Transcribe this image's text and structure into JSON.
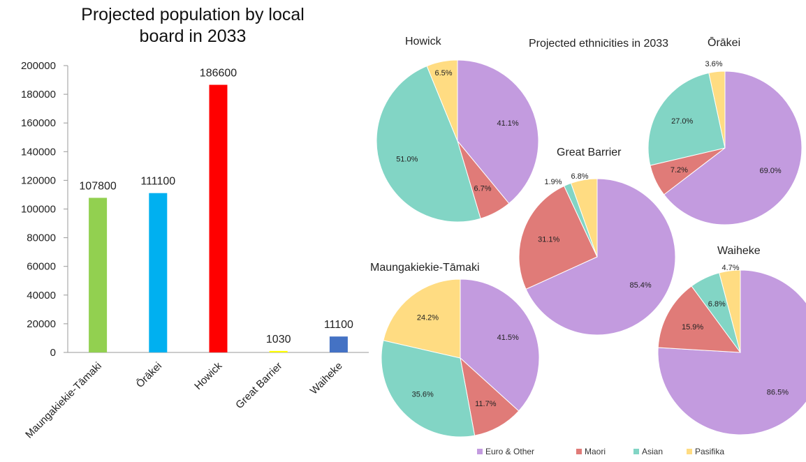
{
  "chart_data": [
    {
      "type": "bar",
      "title": "Projected population by local board in 2033",
      "title_lines": [
        "Projected population by local",
        "board in 2033"
      ],
      "categories": [
        "Maungakiekie-Tāmaki",
        "Ōrākei",
        "Howick",
        "Great Barrier",
        "Waiheke"
      ],
      "values": [
        107800,
        111100,
        186600,
        1030,
        11100
      ],
      "data_labels": [
        "107800",
        "111100",
        "186600",
        "1030",
        "11100"
      ],
      "colors": [
        "#92d050",
        "#00b0f0",
        "#ff0000",
        "#ffff00",
        "#4472c4"
      ],
      "ylim": [
        0,
        200000
      ],
      "yticks": [
        0,
        20000,
        40000,
        60000,
        80000,
        100000,
        120000,
        140000,
        160000,
        180000,
        200000
      ],
      "xlabel": "",
      "ylabel": "",
      "grid": false
    },
    {
      "type": "pie",
      "title": "Projected ethnicities in 2033",
      "legend": {
        "position": "bottom",
        "entries": [
          {
            "name": "Euro & Other",
            "color": "#c39bdf"
          },
          {
            "name": "Maori",
            "color": "#e07b78"
          },
          {
            "name": "Asian",
            "color": "#82d5c5"
          },
          {
            "name": "Pasifika",
            "color": "#ffdc82"
          }
        ]
      },
      "pies": [
        {
          "name": "Howick",
          "values": [
            41.1,
            6.7,
            51.0,
            6.5
          ],
          "labels": [
            "41.1%",
            "6.7%",
            "51.0%",
            "6.5%"
          ]
        },
        {
          "name": "Ōrākei",
          "values": [
            69.0,
            7.2,
            27.0,
            3.6
          ],
          "labels": [
            "69.0%",
            "7.2%",
            "27.0%",
            "3.6%"
          ]
        },
        {
          "name": "Great Barrier",
          "values": [
            85.4,
            31.1,
            1.9,
            6.8
          ],
          "labels": [
            "85.4%",
            "31.1%",
            "1.9%",
            "6.8%"
          ]
        },
        {
          "name": "Maungakiekie-Tāmaki",
          "values": [
            41.5,
            11.7,
            35.6,
            24.2
          ],
          "labels": [
            "41.5%",
            "11.7%",
            "35.6%",
            "24.2%"
          ]
        },
        {
          "name": "Waiheke",
          "values": [
            86.5,
            15.9,
            6.8,
            4.7
          ],
          "labels": [
            "86.5%",
            "15.9%",
            "6.8%",
            "4.7%"
          ]
        }
      ]
    }
  ]
}
